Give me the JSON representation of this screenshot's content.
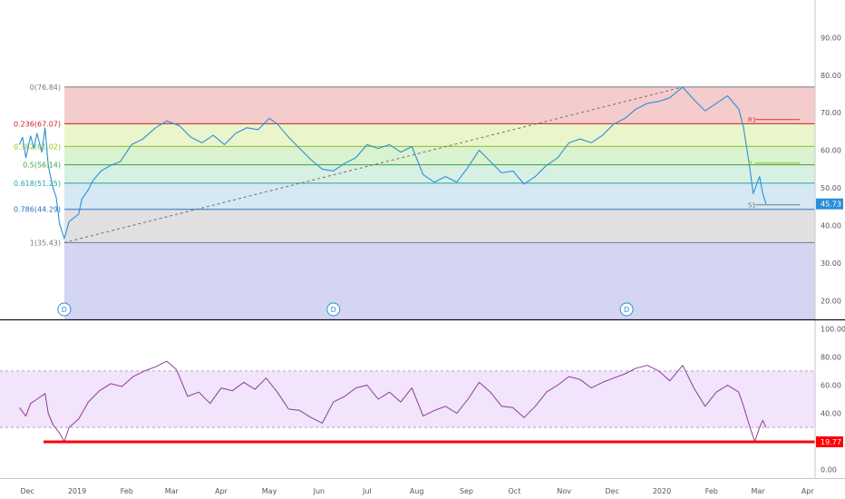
{
  "chart_data": [
    {
      "type": "line",
      "panel": "price",
      "ylim": [
        15,
        100
      ],
      "yticks": [
        20,
        30,
        40,
        50,
        60,
        70,
        80,
        90
      ],
      "ytick_labels": [
        "20.00",
        "30.00",
        "40.00",
        "50.00",
        "60.00",
        "70.00",
        "80.00",
        "90.00"
      ],
      "last_value_label": "45.73",
      "last_value": 45.73,
      "colors": {
        "line": "#2b8fd9",
        "last_value_badge": "#2b8fd9"
      },
      "fibonacci": {
        "levels": [
          {
            "ratio": 0,
            "price": 76.84,
            "label": "0(76.84)",
            "color": "#787b86",
            "fill": "#f4cccc"
          },
          {
            "ratio": 0.236,
            "price": 67.07,
            "label": "0.236(67.07)",
            "color": "#cc1f1f",
            "fill": "#eaf5cc"
          },
          {
            "ratio": 0.382,
            "price": 61.02,
            "label": "0.382(61.02)",
            "color": "#8fc31f",
            "fill": "#d9f2d0"
          },
          {
            "ratio": 0.5,
            "price": 56.14,
            "label": "0.5(56.14)",
            "color": "#3aa53a",
            "fill": "#d7f0e3"
          },
          {
            "ratio": 0.618,
            "price": 51.25,
            "label": "0.618(51.25)",
            "color": "#21a89a",
            "fill": "#d5e8f3"
          },
          {
            "ratio": 0.786,
            "price": 44.29,
            "label": "0.786(44.29)",
            "color": "#2b6fbf",
            "fill": "#e0e0e0"
          },
          {
            "ratio": 1,
            "price": 35.43,
            "label": "1(35.43)",
            "color": "#787b86",
            "fill": "#d4d4f3"
          }
        ],
        "trendline": {
          "from": {
            "x": "2018-12-24",
            "y": 35.43
          },
          "to": {
            "x": "2020-01-14",
            "y": 76.84
          }
        }
      },
      "pivot_labels": [
        {
          "label": "R1",
          "value": 68.2,
          "color": "#e03030"
        },
        {
          "label": "P",
          "value": 56.6,
          "color": "#8fc31f"
        },
        {
          "label": "S1",
          "value": 45.5,
          "color": "#787b86"
        }
      ],
      "event_markers": [
        {
          "label": "D",
          "x": "2018-12-24"
        },
        {
          "label": "D",
          "x": "2019-06-10"
        },
        {
          "label": "D",
          "x": "2019-12-10"
        }
      ],
      "series": [
        {
          "values": [
            [
              "2018-11-26",
              61.5
            ],
            [
              "2018-11-28",
              63.5
            ],
            [
              "2018-11-30",
              58.0
            ],
            [
              "2018-12-03",
              63.8
            ],
            [
              "2018-12-05",
              60.5
            ],
            [
              "2018-12-07",
              64.5
            ],
            [
              "2018-12-10",
              59.5
            ],
            [
              "2018-12-12",
              66.0
            ],
            [
              "2018-12-14",
              56.0
            ],
            [
              "2018-12-17",
              50.0
            ],
            [
              "2018-12-19",
              47.5
            ],
            [
              "2018-12-21",
              40.5
            ],
            [
              "2018-12-24",
              36.5
            ],
            [
              "2018-12-27",
              41.0
            ],
            [
              "2019-01-02",
              43.0
            ],
            [
              "2019-01-04",
              47.0
            ],
            [
              "2019-01-08",
              49.5
            ],
            [
              "2019-01-11",
              52.0
            ],
            [
              "2019-01-16",
              54.5
            ],
            [
              "2019-01-22",
              56.0
            ],
            [
              "2019-01-28",
              57.0
            ],
            [
              "2019-02-04",
              61.5
            ],
            [
              "2019-02-11",
              63.0
            ],
            [
              "2019-02-19",
              66.0
            ],
            [
              "2019-02-26",
              67.8
            ],
            [
              "2019-03-06",
              66.5
            ],
            [
              "2019-03-13",
              63.5
            ],
            [
              "2019-03-20",
              62.0
            ],
            [
              "2019-03-27",
              64.0
            ],
            [
              "2019-04-03",
              61.5
            ],
            [
              "2019-04-10",
              64.5
            ],
            [
              "2019-04-17",
              66.0
            ],
            [
              "2019-04-24",
              65.5
            ],
            [
              "2019-05-01",
              68.5
            ],
            [
              "2019-05-06",
              67.0
            ],
            [
              "2019-05-13",
              63.5
            ],
            [
              "2019-05-20",
              60.5
            ],
            [
              "2019-05-27",
              57.5
            ],
            [
              "2019-06-03",
              55.0
            ],
            [
              "2019-06-10",
              54.5
            ],
            [
              "2019-06-17",
              56.5
            ],
            [
              "2019-06-24",
              58.0
            ],
            [
              "2019-07-01",
              61.5
            ],
            [
              "2019-07-08",
              60.5
            ],
            [
              "2019-07-15",
              61.5
            ],
            [
              "2019-07-22",
              59.5
            ],
            [
              "2019-07-29",
              61.0
            ],
            [
              "2019-08-05",
              53.5
            ],
            [
              "2019-08-12",
              51.5
            ],
            [
              "2019-08-19",
              53.0
            ],
            [
              "2019-08-26",
              51.5
            ],
            [
              "2019-09-02",
              55.5
            ],
            [
              "2019-09-09",
              60.0
            ],
            [
              "2019-09-16",
              57.0
            ],
            [
              "2019-09-23",
              54.0
            ],
            [
              "2019-09-30",
              54.5
            ],
            [
              "2019-10-07",
              51.0
            ],
            [
              "2019-10-14",
              53.0
            ],
            [
              "2019-10-21",
              56.0
            ],
            [
              "2019-10-28",
              58.0
            ],
            [
              "2019-11-04",
              62.0
            ],
            [
              "2019-11-11",
              63.0
            ],
            [
              "2019-11-18",
              62.0
            ],
            [
              "2019-11-25",
              64.0
            ],
            [
              "2019-12-02",
              67.0
            ],
            [
              "2019-12-09",
              68.5
            ],
            [
              "2019-12-16",
              71.0
            ],
            [
              "2019-12-23",
              72.5
            ],
            [
              "2019-12-30",
              73.0
            ],
            [
              "2020-01-06",
              74.0
            ],
            [
              "2020-01-14",
              76.8
            ],
            [
              "2020-01-21",
              73.5
            ],
            [
              "2020-01-28",
              70.5
            ],
            [
              "2020-02-04",
              72.5
            ],
            [
              "2020-02-11",
              74.5
            ],
            [
              "2020-02-18",
              71.0
            ],
            [
              "2020-02-21",
              66.0
            ],
            [
              "2020-02-25",
              55.0
            ],
            [
              "2020-02-27",
              48.5
            ],
            [
              "2020-03-02",
              53.0
            ],
            [
              "2020-03-04",
              48.5
            ],
            [
              "2020-03-06",
              45.73
            ]
          ]
        }
      ],
      "x_ticks": [
        {
          "label": "Dec",
          "x": "2018-12-01"
        },
        {
          "label": "2019",
          "x": "2019-01-01"
        },
        {
          "label": "Feb",
          "x": "2019-02-01"
        },
        {
          "label": "Mar",
          "x": "2019-03-01"
        },
        {
          "label": "Apr",
          "x": "2019-04-01"
        },
        {
          "label": "May",
          "x": "2019-05-01"
        },
        {
          "label": "Jun",
          "x": "2019-06-01"
        },
        {
          "label": "Jul",
          "x": "2019-07-01"
        },
        {
          "label": "Aug",
          "x": "2019-08-01"
        },
        {
          "label": "Sep",
          "x": "2019-09-01"
        },
        {
          "label": "Oct",
          "x": "2019-10-01"
        },
        {
          "label": "Nov",
          "x": "2019-11-01"
        },
        {
          "label": "Dec",
          "x": "2019-12-01"
        },
        {
          "label": "2020",
          "x": "2020-01-01"
        },
        {
          "label": "Feb",
          "x": "2020-02-01"
        },
        {
          "label": "Mar",
          "x": "2020-03-01"
        },
        {
          "label": "Apr",
          "x": "2020-04-01"
        }
      ]
    },
    {
      "type": "line",
      "panel": "indicator",
      "ylim": [
        -6,
        106
      ],
      "yticks": [
        0,
        20,
        40,
        60,
        80,
        100
      ],
      "ytick_labels": [
        "0.00",
        "20.00",
        "40.00",
        "60.00",
        "80.00",
        "100.00"
      ],
      "bands": {
        "upper": 70,
        "lower": 30,
        "fill": "#f1e4fb",
        "border": "#b39ddb"
      },
      "support_line": {
        "value": 19.77,
        "label": "19.77",
        "color": "#ff0000"
      },
      "colors": {
        "line": "#8e3b9a"
      },
      "series": [
        {
          "values": [
            [
              "2018-11-26",
              44
            ],
            [
              "2018-11-30",
              38
            ],
            [
              "2018-12-03",
              47
            ],
            [
              "2018-12-07",
              50
            ],
            [
              "2018-12-12",
              54
            ],
            [
              "2018-12-14",
              40
            ],
            [
              "2018-12-17",
              32
            ],
            [
              "2018-12-21",
              26
            ],
            [
              "2018-12-24",
              20
            ],
            [
              "2018-12-27",
              30
            ],
            [
              "2019-01-02",
              36
            ],
            [
              "2019-01-08",
              48
            ],
            [
              "2019-01-15",
              56
            ],
            [
              "2019-01-22",
              61
            ],
            [
              "2019-01-29",
              59
            ],
            [
              "2019-02-05",
              66
            ],
            [
              "2019-02-12",
              70
            ],
            [
              "2019-02-19",
              73
            ],
            [
              "2019-02-26",
              77
            ],
            [
              "2019-03-04",
              71
            ],
            [
              "2019-03-11",
              52
            ],
            [
              "2019-03-18",
              55
            ],
            [
              "2019-03-25",
              47
            ],
            [
              "2019-04-01",
              58
            ],
            [
              "2019-04-08",
              56
            ],
            [
              "2019-04-15",
              62
            ],
            [
              "2019-04-22",
              57
            ],
            [
              "2019-04-29",
              65
            ],
            [
              "2019-05-06",
              55
            ],
            [
              "2019-05-13",
              43
            ],
            [
              "2019-05-20",
              42
            ],
            [
              "2019-05-27",
              37
            ],
            [
              "2019-06-03",
              33
            ],
            [
              "2019-06-10",
              48
            ],
            [
              "2019-06-17",
              52
            ],
            [
              "2019-06-24",
              58
            ],
            [
              "2019-07-01",
              60
            ],
            [
              "2019-07-08",
              50
            ],
            [
              "2019-07-15",
              55
            ],
            [
              "2019-07-22",
              48
            ],
            [
              "2019-07-29",
              58
            ],
            [
              "2019-08-05",
              38
            ],
            [
              "2019-08-12",
              42
            ],
            [
              "2019-08-19",
              45
            ],
            [
              "2019-08-26",
              40
            ],
            [
              "2019-09-02",
              50
            ],
            [
              "2019-09-09",
              62
            ],
            [
              "2019-09-16",
              55
            ],
            [
              "2019-09-23",
              45
            ],
            [
              "2019-09-30",
              44
            ],
            [
              "2019-10-07",
              37
            ],
            [
              "2019-10-14",
              45
            ],
            [
              "2019-10-21",
              55
            ],
            [
              "2019-10-28",
              60
            ],
            [
              "2019-11-04",
              66
            ],
            [
              "2019-11-11",
              64
            ],
            [
              "2019-11-18",
              58
            ],
            [
              "2019-11-25",
              62
            ],
            [
              "2019-12-02",
              65
            ],
            [
              "2019-12-09",
              68
            ],
            [
              "2019-12-16",
              72
            ],
            [
              "2019-12-23",
              74
            ],
            [
              "2019-12-30",
              70
            ],
            [
              "2020-01-06",
              63
            ],
            [
              "2020-01-14",
              74
            ],
            [
              "2020-01-21",
              58
            ],
            [
              "2020-01-28",
              45
            ],
            [
              "2020-02-04",
              55
            ],
            [
              "2020-02-11",
              60
            ],
            [
              "2020-02-18",
              55
            ],
            [
              "2020-02-21",
              45
            ],
            [
              "2020-02-25",
              30
            ],
            [
              "2020-02-28",
              20
            ],
            [
              "2020-03-02",
              30
            ],
            [
              "2020-03-04",
              35
            ],
            [
              "2020-03-06",
              30
            ]
          ]
        }
      ]
    }
  ]
}
